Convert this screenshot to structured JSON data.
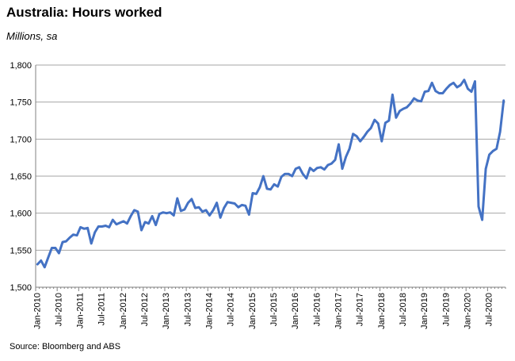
{
  "title": "Australia: Hours worked",
  "subtitle": "Millions, sa",
  "source": "Source: Bloomberg and ABS",
  "colors": {
    "line": "#4472c4",
    "grid": "#a6a6a6",
    "axis": "#808080"
  },
  "chart_data": {
    "type": "line",
    "title": "Australia: Hours worked",
    "subtitle": "Millions, sa",
    "xlabel": "",
    "ylabel": "",
    "ylim": [
      1500,
      1800
    ],
    "yticks": [
      1500,
      1550,
      1600,
      1650,
      1700,
      1750,
      1800
    ],
    "ytick_labels": [
      "1,500",
      "1,550",
      "1,600",
      "1,650",
      "1,700",
      "1,750",
      "1,800"
    ],
    "xtick_labels": [
      "Jan-2010",
      "Jul-2010",
      "Jan-2011",
      "Jul-2011",
      "Jan-2012",
      "Jul-2012",
      "Jan-2013",
      "Jul-2013",
      "Jan-2014",
      "Jul-2014",
      "Jan-2015",
      "Jul-2015",
      "Jan-2016",
      "Jul-2016",
      "Jan-2017",
      "Jul-2017",
      "Jan-2018",
      "Jul-2018",
      "Jan-2019",
      "Jul-2019",
      "Jan-2020",
      "Jul-2020"
    ],
    "grid": true,
    "legend": "none",
    "x_start": "Jan-2010",
    "x_frequency": "monthly",
    "series": [
      {
        "values": [
          1531,
          1536,
          1527,
          1540,
          1553,
          1553,
          1546,
          1561,
          1562,
          1567,
          1571,
          1570,
          1581,
          1579,
          1580,
          1559,
          1574,
          1582,
          1582,
          1583,
          1581,
          1591,
          1585,
          1587,
          1589,
          1586,
          1596,
          1604,
          1602,
          1577,
          1588,
          1586,
          1596,
          1584,
          1599,
          1601,
          1600,
          1601,
          1597,
          1620,
          1603,
          1605,
          1614,
          1619,
          1607,
          1608,
          1602,
          1604,
          1597,
          1604,
          1614,
          1594,
          1607,
          1615,
          1614,
          1613,
          1608,
          1611,
          1610,
          1598,
          1627,
          1626,
          1635,
          1650,
          1633,
          1632,
          1639,
          1636,
          1649,
          1653,
          1653,
          1650,
          1660,
          1662,
          1653,
          1647,
          1661,
          1657,
          1661,
          1662,
          1659,
          1665,
          1667,
          1672,
          1693,
          1660,
          1676,
          1687,
          1707,
          1704,
          1697,
          1703,
          1710,
          1715,
          1726,
          1721,
          1697,
          1722,
          1725,
          1760,
          1729,
          1738,
          1741,
          1743,
          1748,
          1755,
          1752,
          1751,
          1764,
          1765,
          1776,
          1765,
          1762,
          1762,
          1768,
          1773,
          1776,
          1770,
          1773,
          1780,
          1768,
          1764,
          1778,
          1609,
          1591,
          1660,
          1679,
          1684,
          1687,
          1710,
          1752
        ]
      }
    ]
  }
}
